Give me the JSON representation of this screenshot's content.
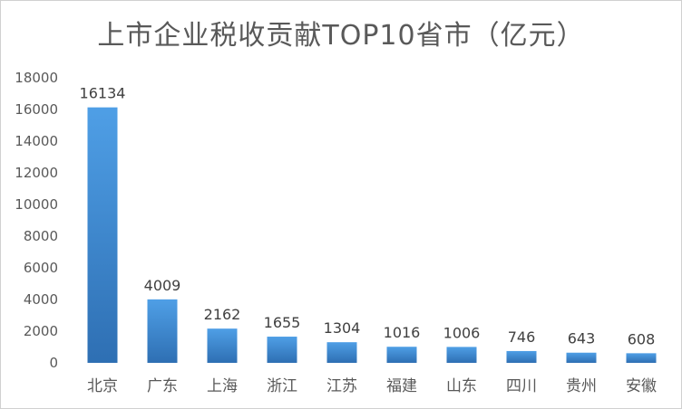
{
  "chart_data": {
    "type": "bar",
    "title": "上市企业税收贡献TOP10省市（亿元）",
    "categories": [
      "北京",
      "广东",
      "上海",
      "浙江",
      "江苏",
      "福建",
      "山东",
      "四川",
      "贵州",
      "安徽"
    ],
    "values": [
      16134,
      4009,
      2162,
      1655,
      1304,
      1016,
      1006,
      746,
      643,
      608
    ],
    "yticks": [
      0,
      2000,
      4000,
      6000,
      8000,
      10000,
      12000,
      14000,
      16000,
      18000
    ],
    "ylim": [
      0,
      18000
    ],
    "xlabel": "",
    "ylabel": "",
    "grid": false,
    "legend": "none",
    "bar_color_top": "#4f9fe6",
    "bar_color_bottom": "#2e6fb3"
  }
}
